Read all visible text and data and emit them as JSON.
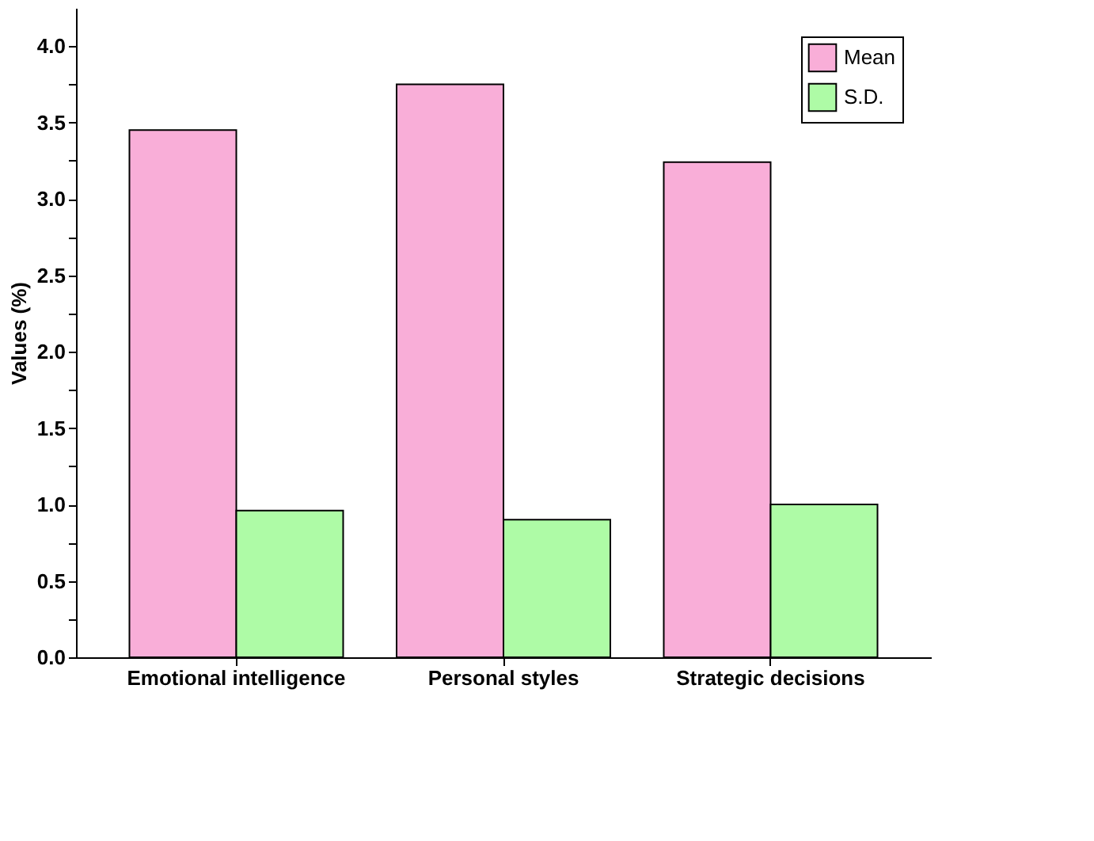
{
  "chart_data": {
    "type": "bar",
    "ylabel": "Values (%)",
    "categories": [
      "Emotional intelligence",
      "Personal styles",
      "Strategic decisions"
    ],
    "series": [
      {
        "name": "Mean",
        "color": "#f9aed8",
        "values": [
          3.45,
          3.75,
          3.24
        ]
      },
      {
        "name": "S.D.",
        "color": "#aefba6",
        "values": [
          0.96,
          0.9,
          1.0
        ]
      }
    ],
    "ylim": [
      0,
      4.25
    ],
    "yticks": [
      {
        "value": 0,
        "label": "0.0"
      },
      {
        "value": 0.25,
        "label": null
      },
      0.5,
      {
        "value": 0.75,
        "label": null
      },
      {
        "value": 1,
        "label": "1.0"
      },
      {
        "value": 1.25,
        "label": null
      },
      1.5,
      {
        "value": 1.75,
        "label": null
      },
      {
        "value": 2,
        "label": "2.0"
      },
      {
        "value": 2.25,
        "label": null
      },
      2.5,
      {
        "value": 2.75,
        "label": null
      },
      {
        "value": 3,
        "label": "3.0"
      },
      {
        "value": 3.25,
        "label": null
      },
      3.5,
      {
        "value": 3.75,
        "label": null
      },
      {
        "value": 4,
        "label": "4.0"
      }
    ],
    "grid": false,
    "legend": "top right"
  }
}
